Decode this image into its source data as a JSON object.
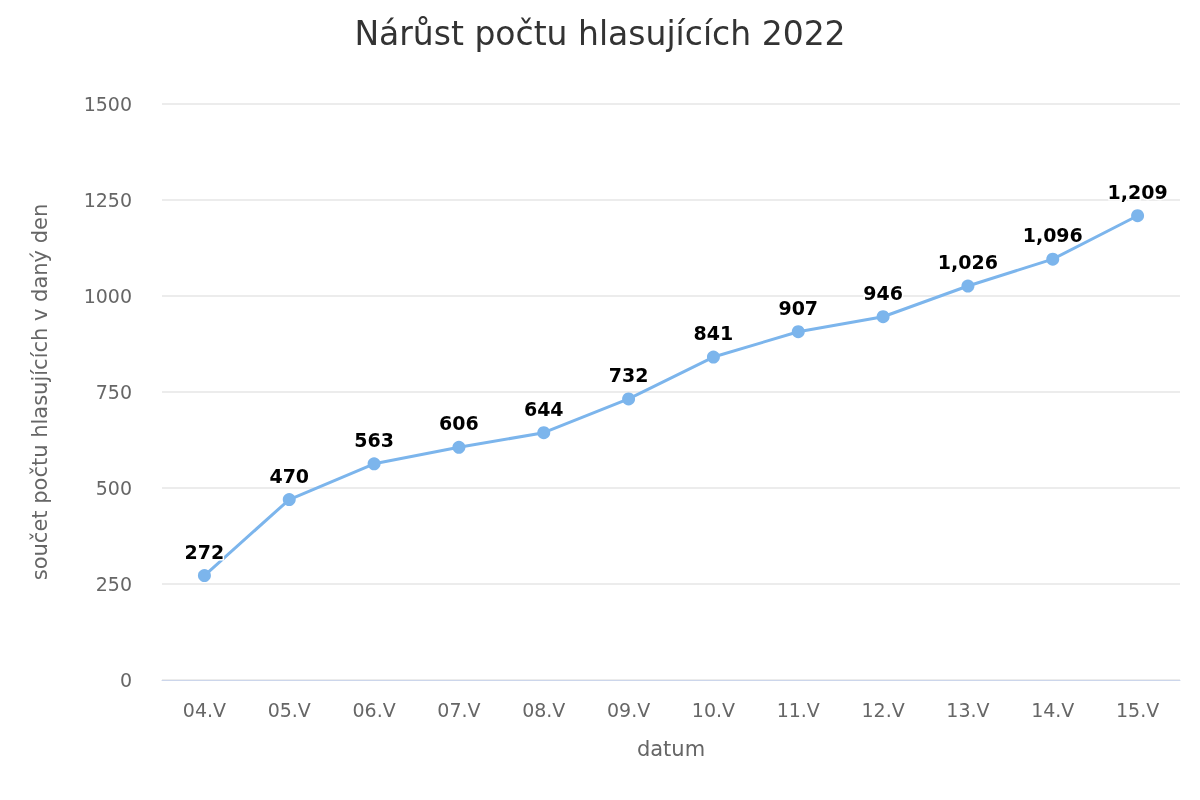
{
  "chart_data": {
    "type": "line",
    "title": "Nárůst počtu hlasujících 2022",
    "xlabel": "datum",
    "ylabel": "součet počtu hlasujících v daný den",
    "categories": [
      "04.V",
      "05.V",
      "06.V",
      "07.V",
      "08.V",
      "09.V",
      "10.V",
      "11.V",
      "12.V",
      "13.V",
      "14.V",
      "15.V"
    ],
    "series": [
      {
        "color": "#7cb5ec",
        "values": [
          272,
          470,
          563,
          606,
          644,
          732,
          841,
          907,
          946,
          1026,
          1096,
          1209
        ],
        "value_labels": [
          "272",
          "470",
          "563",
          "606",
          "644",
          "732",
          "841",
          "907",
          "946",
          "1,026",
          "1,096",
          "1,209"
        ]
      }
    ],
    "ylim": [
      0,
      1500
    ],
    "yticks": [
      0,
      250,
      500,
      750,
      1000,
      1250,
      1500
    ],
    "grid": "y",
    "marker": "circle",
    "line_style": "solid"
  }
}
